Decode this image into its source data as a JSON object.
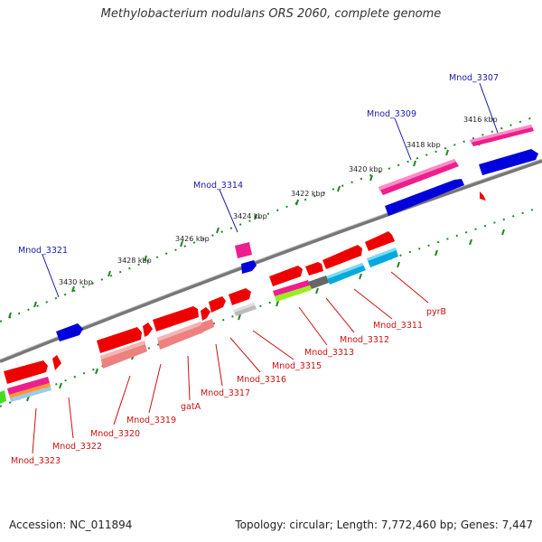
{
  "title": "Methylobacterium nodulans ORS 2060, complete genome",
  "footer": {
    "accession": "Accession: NC_011894",
    "stats": "Topology: circular; Length: 7,772,460 bp; Genes: 7,447"
  },
  "ticks": {
    "t3416": "3416 kbp",
    "t3418": "3418 kbp",
    "t3420": "3420 kbp",
    "t3422": "3422 kbp",
    "t3424": "3424 kbp",
    "t3426": "3426 kbp",
    "t3428": "3428 kbp",
    "t3430": "3430 kbp"
  },
  "genes_top": {
    "mnod_3307": "Mnod_3307",
    "mnod_3309": "Mnod_3309",
    "mnod_3314": "Mnod_3314",
    "mnod_3321": "Mnod_3321"
  },
  "genes_bottom": {
    "pyrb": "pyrB",
    "mnod_3311": "Mnod_3311",
    "mnod_3312": "Mnod_3312",
    "mnod_3313": "Mnod_3313",
    "mnod_3315": "Mnod_3315",
    "mnod_3316": "Mnod_3316",
    "mnod_3317": "Mnod_3317",
    "gata": "gatA",
    "mnod_3319": "Mnod_3319",
    "mnod_3320": "Mnod_3320",
    "mnod_3322": "Mnod_3322",
    "mnod_3323": "Mnod_3323"
  },
  "colors": {
    "backbone": "#808080",
    "forward_cds": "#ee0000",
    "magenta": "#ee1e8c",
    "blue": "#0000dd",
    "cyan": "#00aadd",
    "lime": "#99ee22",
    "dark_gray": "#666666",
    "light_gray": "#bbbbbb",
    "salmon": "#ee8080",
    "top_label": "#1a1aa8",
    "bottom_label": "#cc1111",
    "dots": "#228822"
  }
}
